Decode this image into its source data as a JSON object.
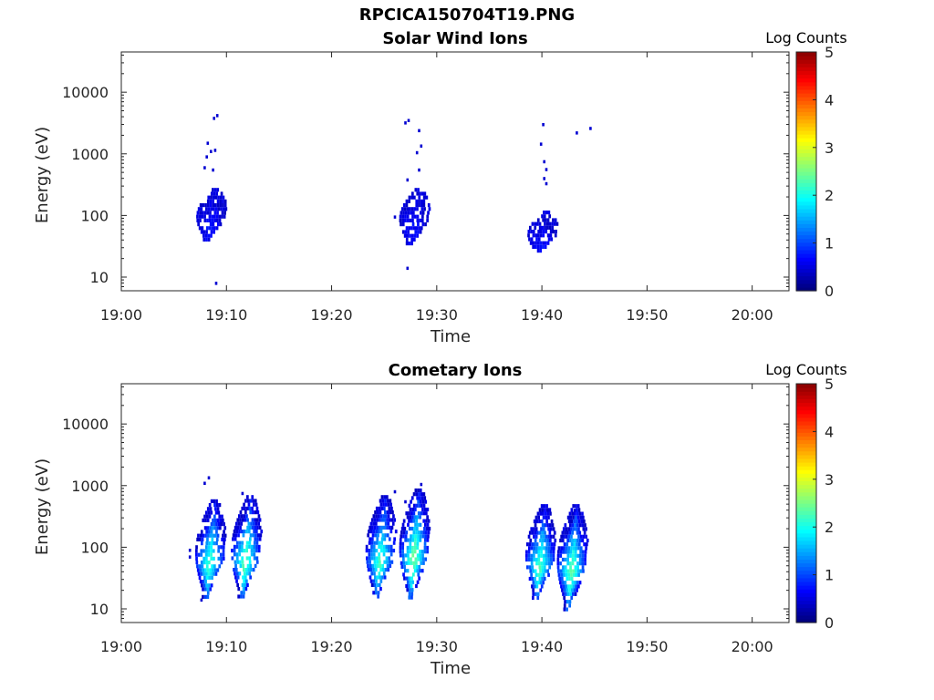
{
  "figure_title": "RPCICA150704T19.PNG",
  "chart_data": [
    {
      "type": "heatmap",
      "title": "Solar Wind Ions",
      "xlabel": "Time",
      "ylabel": "Energy (eV)",
      "x_ticks": [
        "19:00",
        "19:10",
        "19:20",
        "19:30",
        "19:40",
        "19:50",
        "20:00"
      ],
      "x_range_minutes": [
        0,
        63.5
      ],
      "y_scale": "log",
      "y_range": [
        6,
        45000
      ],
      "y_ticks": [
        10,
        100,
        1000,
        10000
      ],
      "y_tick_labels": [
        "10",
        "100",
        "1000",
        "10000"
      ],
      "colorbar": {
        "label": "Log Counts",
        "range": [
          0,
          5
        ],
        "ticks": [
          "0",
          "1",
          "2",
          "3",
          "4",
          "5"
        ]
      },
      "clusters": [
        {
          "center_time_minutes": 8.5,
          "energy_range_eV": [
            40,
            280
          ],
          "peak_log_counts": 0.3
        },
        {
          "center_time_minutes": 27.8,
          "energy_range_eV": [
            35,
            280
          ],
          "peak_log_counts": 0.3
        },
        {
          "center_time_minutes": 40.0,
          "energy_range_eV": [
            25,
            120
          ],
          "peak_log_counts": 0.3
        }
      ],
      "sparse_points": [
        [
          8.2,
          1500
        ],
        [
          8.5,
          1100
        ],
        [
          8.1,
          900
        ],
        [
          8.7,
          550
        ],
        [
          7.9,
          600
        ],
        [
          8.8,
          3800
        ],
        [
          9.1,
          4200
        ],
        [
          8.9,
          1150
        ],
        [
          27.3,
          3500
        ],
        [
          27.0,
          3200
        ],
        [
          28.3,
          2400
        ],
        [
          28.5,
          1350
        ],
        [
          28.1,
          1050
        ],
        [
          28.3,
          550
        ],
        [
          27.2,
          380
        ],
        [
          26.0,
          95
        ],
        [
          39.9,
          1450
        ],
        [
          40.1,
          3000
        ],
        [
          40.2,
          750
        ],
        [
          40.4,
          560
        ],
        [
          40.2,
          400
        ],
        [
          40.4,
          330
        ],
        [
          43.3,
          2200
        ],
        [
          44.6,
          2600
        ],
        [
          9.0,
          8
        ],
        [
          27.2,
          14
        ]
      ]
    },
    {
      "type": "heatmap",
      "title": "Cometary Ions",
      "xlabel": "Time",
      "ylabel": "Energy (eV)",
      "x_ticks": [
        "19:00",
        "19:10",
        "19:20",
        "19:30",
        "19:40",
        "19:50",
        "20:00"
      ],
      "x_range_minutes": [
        0,
        63.5
      ],
      "y_scale": "log",
      "y_range": [
        6,
        45000
      ],
      "y_ticks": [
        10,
        100,
        1000,
        10000
      ],
      "y_tick_labels": [
        "10",
        "100",
        "1000",
        "10000"
      ],
      "colorbar": {
        "label": "Log Counts",
        "range": [
          0,
          5
        ],
        "ticks": [
          "0",
          "1",
          "2",
          "3",
          "4",
          "5"
        ]
      },
      "clusters": [
        {
          "center_time_minutes": 8.4,
          "energy_range_eV": [
            15,
            600
          ],
          "peak_log_counts": 2.0
        },
        {
          "center_time_minutes": 11.8,
          "energy_range_eV": [
            15,
            700
          ],
          "peak_log_counts": 2.2
        },
        {
          "center_time_minutes": 24.6,
          "energy_range_eV": [
            15,
            700
          ],
          "peak_log_counts": 2.0
        },
        {
          "center_time_minutes": 27.8,
          "energy_range_eV": [
            15,
            900
          ],
          "peak_log_counts": 2.3
        },
        {
          "center_time_minutes": 39.8,
          "energy_range_eV": [
            15,
            500
          ],
          "peak_log_counts": 2.1
        },
        {
          "center_time_minutes": 42.8,
          "energy_range_eV": [
            10,
            500
          ],
          "peak_log_counts": 2.2
        }
      ],
      "sparse_points": [
        [
          8.3,
          1350
        ],
        [
          7.9,
          1100
        ],
        [
          6.5,
          70
        ],
        [
          6.5,
          90
        ],
        [
          11.5,
          750
        ],
        [
          26.0,
          800
        ],
        [
          28.5,
          1050
        ],
        [
          27.0,
          550
        ],
        [
          43.1,
          400
        ],
        [
          7.6,
          14
        ]
      ]
    }
  ]
}
